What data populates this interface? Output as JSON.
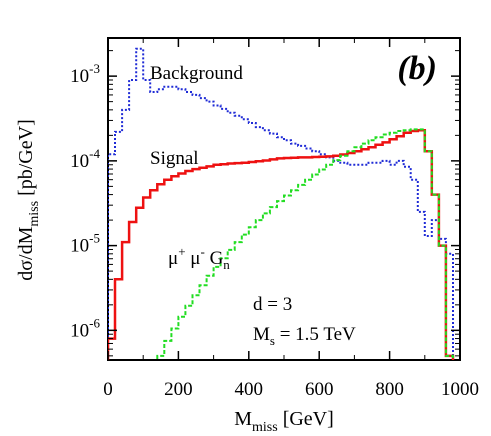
{
  "chart_data": {
    "type": "line",
    "panel_label": "(b)",
    "xlabel": "M",
    "xlabel_sub": "miss",
    "xlabel_unit": " [GeV]",
    "ylabel": "dσ/dM",
    "ylabel_sub": "miss",
    "ylabel_unit": " [pb/GeV]",
    "xlim": [
      0,
      1000
    ],
    "ylim_log10": [
      -6.35,
      -2.55
    ],
    "x_ticks": [
      "0",
      "200",
      "400",
      "600",
      "800",
      "1000"
    ],
    "y_ticks": [
      {
        "base": "10",
        "exp": "-6",
        "log": -6
      },
      {
        "base": "10",
        "exp": "-5",
        "log": -5
      },
      {
        "base": "10",
        "exp": "-4",
        "log": -4
      },
      {
        "base": "10",
        "exp": "-3",
        "log": -3
      }
    ],
    "annotations": {
      "background": "Background",
      "signal": "Signal",
      "mumu_pre": "μ",
      "mumu_sup1": "+",
      "mumu_mid": " μ",
      "mumu_sup2": "-",
      "mumu_g": " G",
      "mumu_sub": "n",
      "d_line": "d = 3",
      "ms_main": "M",
      "ms_sub": "s",
      "ms_val": " = 1.5 TeV"
    },
    "series": [
      {
        "name": "Background",
        "color": "#1f2bd6",
        "style": "dotted",
        "x": [
          0,
          20,
          40,
          60,
          80,
          100,
          120,
          140,
          160,
          180,
          200,
          220,
          240,
          260,
          280,
          300,
          320,
          340,
          360,
          380,
          400,
          420,
          440,
          460,
          480,
          500,
          520,
          540,
          560,
          580,
          600,
          620,
          640,
          660,
          680,
          700,
          720,
          740,
          760,
          780,
          800,
          820,
          840,
          860,
          880,
          900,
          920,
          940,
          960,
          980
        ],
        "y": [
          0.00012,
          0.00022,
          0.0004,
          0.0009,
          0.0021,
          0.0009,
          0.00065,
          0.0007,
          0.00075,
          0.00075,
          0.0007,
          0.00065,
          0.0006,
          0.00055,
          0.0005,
          0.00045,
          0.00041,
          0.00037,
          0.00034,
          0.00031,
          0.00028,
          0.00025,
          0.00023,
          0.00021,
          0.00019,
          0.000175,
          0.00016,
          0.00015,
          0.00014,
          0.00013,
          0.00012,
          0.00011,
          0.0001,
          9.5e-05,
          9e-05,
          9e-05,
          9e-05,
          9.5e-05,
          9.5e-05,
          0.0001,
          9e-05,
          0.0001,
          8.5e-05,
          6e-05,
          2.5e-05,
          1.3e-05,
          2e-05,
          1.2e-05,
          8e-06,
          1e-07
        ]
      },
      {
        "name": "Signal",
        "color": "#ee1111",
        "style": "solid",
        "x": [
          0,
          20,
          40,
          60,
          80,
          100,
          120,
          140,
          160,
          180,
          200,
          220,
          240,
          260,
          280,
          300,
          320,
          340,
          360,
          380,
          400,
          420,
          440,
          460,
          480,
          500,
          520,
          540,
          560,
          580,
          600,
          620,
          640,
          660,
          680,
          700,
          720,
          740,
          760,
          780,
          800,
          820,
          840,
          860,
          880,
          900,
          920,
          940,
          960,
          980
        ],
        "y": [
          8e-07,
          4e-06,
          1.1e-05,
          1.9e-05,
          2.8e-05,
          3.7e-05,
          4.5e-05,
          5.3e-05,
          6e-05,
          6.6e-05,
          7.1e-05,
          7.6e-05,
          8e-05,
          8.3e-05,
          8.6e-05,
          9e-05,
          9.1e-05,
          9.3e-05,
          9.4e-05,
          9.5e-05,
          9.7e-05,
          9.9e-05,
          0.000101,
          0.000104,
          0.000107,
          0.000108,
          0.000109,
          0.00011,
          0.00011,
          0.000111,
          0.000112,
          0.000113,
          0.000115,
          0.000119,
          0.000124,
          0.00013,
          0.000137,
          0.000145,
          0.000155,
          0.000165,
          0.00018,
          0.000195,
          0.000215,
          0.000225,
          0.00023,
          0.00013,
          4e-05,
          1e-05,
          5e-07,
          1e-07
        ]
      },
      {
        "name": "μ+μ- Gn",
        "color": "#22dd22",
        "style": "dashed",
        "x": [
          140,
          160,
          180,
          200,
          220,
          240,
          260,
          280,
          300,
          320,
          340,
          360,
          380,
          400,
          420,
          440,
          460,
          480,
          500,
          520,
          540,
          560,
          580,
          600,
          620,
          640,
          660,
          680,
          700,
          720,
          740,
          760,
          780,
          800,
          820,
          840,
          860,
          880,
          900,
          920,
          940,
          960,
          980
        ],
        "y": [
          5e-07,
          7.5e-07,
          1.05e-06,
          1.45e-06,
          1.95e-06,
          2.6e-06,
          3.4e-06,
          4.4e-06,
          5.6e-06,
          7.1e-06,
          8.9e-06,
          1.1e-05,
          1.35e-05,
          1.65e-05,
          2e-05,
          2.4e-05,
          2.85e-05,
          3.35e-05,
          3.9e-05,
          4.5e-05,
          5.2e-05,
          6e-05,
          6.9e-05,
          7.9e-05,
          9e-05,
          0.000102,
          0.000115,
          0.00013,
          0.000145,
          0.00016,
          0.000175,
          0.00019,
          0.000205,
          0.000215,
          0.000225,
          0.00023,
          0.000235,
          0.000235,
          0.00013,
          4e-05,
          1e-05,
          5e-07,
          1e-07
        ]
      }
    ]
  }
}
